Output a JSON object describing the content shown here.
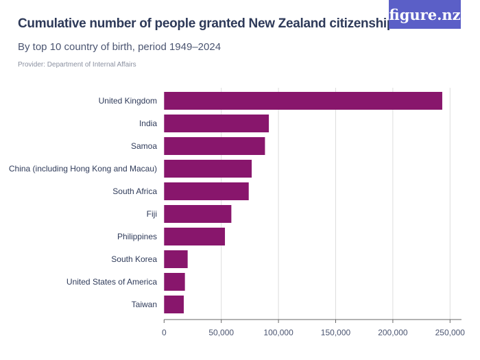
{
  "header": {
    "title": "Cumulative number of people granted New Zealand citizenship",
    "subtitle": "By top 10 country of birth, period 1949–2024",
    "provider": "Provider: Department of Internal Affairs",
    "logo_text": "figure.nz"
  },
  "colors": {
    "bar": "#88166c",
    "logo_bg": "#5b5fc7",
    "text": "#2e3a59",
    "grid": "#dddddd"
  },
  "chart_data": {
    "type": "bar",
    "orientation": "horizontal",
    "title": "Cumulative number of people granted New Zealand citizenship",
    "subtitle": "By top 10 country of birth, period 1949–2024",
    "categories": [
      "United Kingdom",
      "India",
      "Samoa",
      "China (including Hong Kong and Macau)",
      "South Africa",
      "Fiji",
      "Philippines",
      "South Korea",
      "United States of America",
      "Taiwan"
    ],
    "values": [
      243200,
      91600,
      88200,
      76600,
      74000,
      58800,
      53200,
      20600,
      18200,
      17200
    ],
    "xlim": [
      0,
      260000
    ],
    "xticks": [
      0,
      50000,
      100000,
      150000,
      200000,
      250000
    ],
    "xtick_labels": [
      "0",
      "50,000",
      "100,000",
      "150,000",
      "200,000",
      "250,000"
    ],
    "grid": "vertical",
    "legend": "none"
  }
}
